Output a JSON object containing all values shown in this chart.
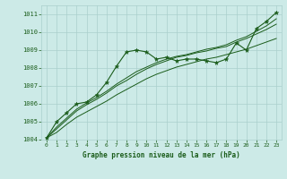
{
  "bg_color": "#cceae7",
  "grid_color": "#aacfcc",
  "line_color": "#1a5c1a",
  "title": "Graphe pression niveau de la mer (hPa)",
  "ylim": [
    1004,
    1011.5
  ],
  "xlim": [
    -0.5,
    23.5
  ],
  "yticks": [
    1004,
    1005,
    1006,
    1007,
    1008,
    1009,
    1010,
    1011
  ],
  "xticks": [
    0,
    1,
    2,
    3,
    4,
    5,
    6,
    7,
    8,
    9,
    10,
    11,
    12,
    13,
    14,
    15,
    16,
    17,
    18,
    19,
    20,
    21,
    22,
    23
  ],
  "series": {
    "main": [
      1004.1,
      1005.0,
      1005.5,
      1006.0,
      1006.1,
      1006.5,
      1007.2,
      1008.1,
      1008.9,
      1009.0,
      1008.9,
      1008.5,
      1008.6,
      1008.4,
      1008.5,
      1008.5,
      1008.4,
      1008.3,
      1008.5,
      1009.4,
      1009.0,
      1010.2,
      1010.6,
      1011.1
    ],
    "line1": [
      1004.1,
      1004.4,
      1004.85,
      1005.25,
      1005.55,
      1005.85,
      1006.15,
      1006.5,
      1006.8,
      1007.1,
      1007.4,
      1007.65,
      1007.85,
      1008.05,
      1008.2,
      1008.35,
      1008.5,
      1008.6,
      1008.75,
      1008.9,
      1009.05,
      1009.25,
      1009.45,
      1009.65
    ],
    "line2": [
      1004.1,
      1004.6,
      1005.1,
      1005.6,
      1005.95,
      1006.25,
      1006.6,
      1007.0,
      1007.3,
      1007.65,
      1007.95,
      1008.2,
      1008.4,
      1008.6,
      1008.7,
      1008.85,
      1008.95,
      1009.1,
      1009.2,
      1009.45,
      1009.65,
      1009.9,
      1010.15,
      1010.45
    ],
    "line3": [
      1004.1,
      1004.7,
      1005.2,
      1005.7,
      1006.05,
      1006.35,
      1006.7,
      1007.1,
      1007.45,
      1007.8,
      1008.05,
      1008.3,
      1008.5,
      1008.65,
      1008.75,
      1008.9,
      1009.05,
      1009.15,
      1009.3,
      1009.55,
      1009.75,
      1010.05,
      1010.35,
      1010.75
    ]
  }
}
